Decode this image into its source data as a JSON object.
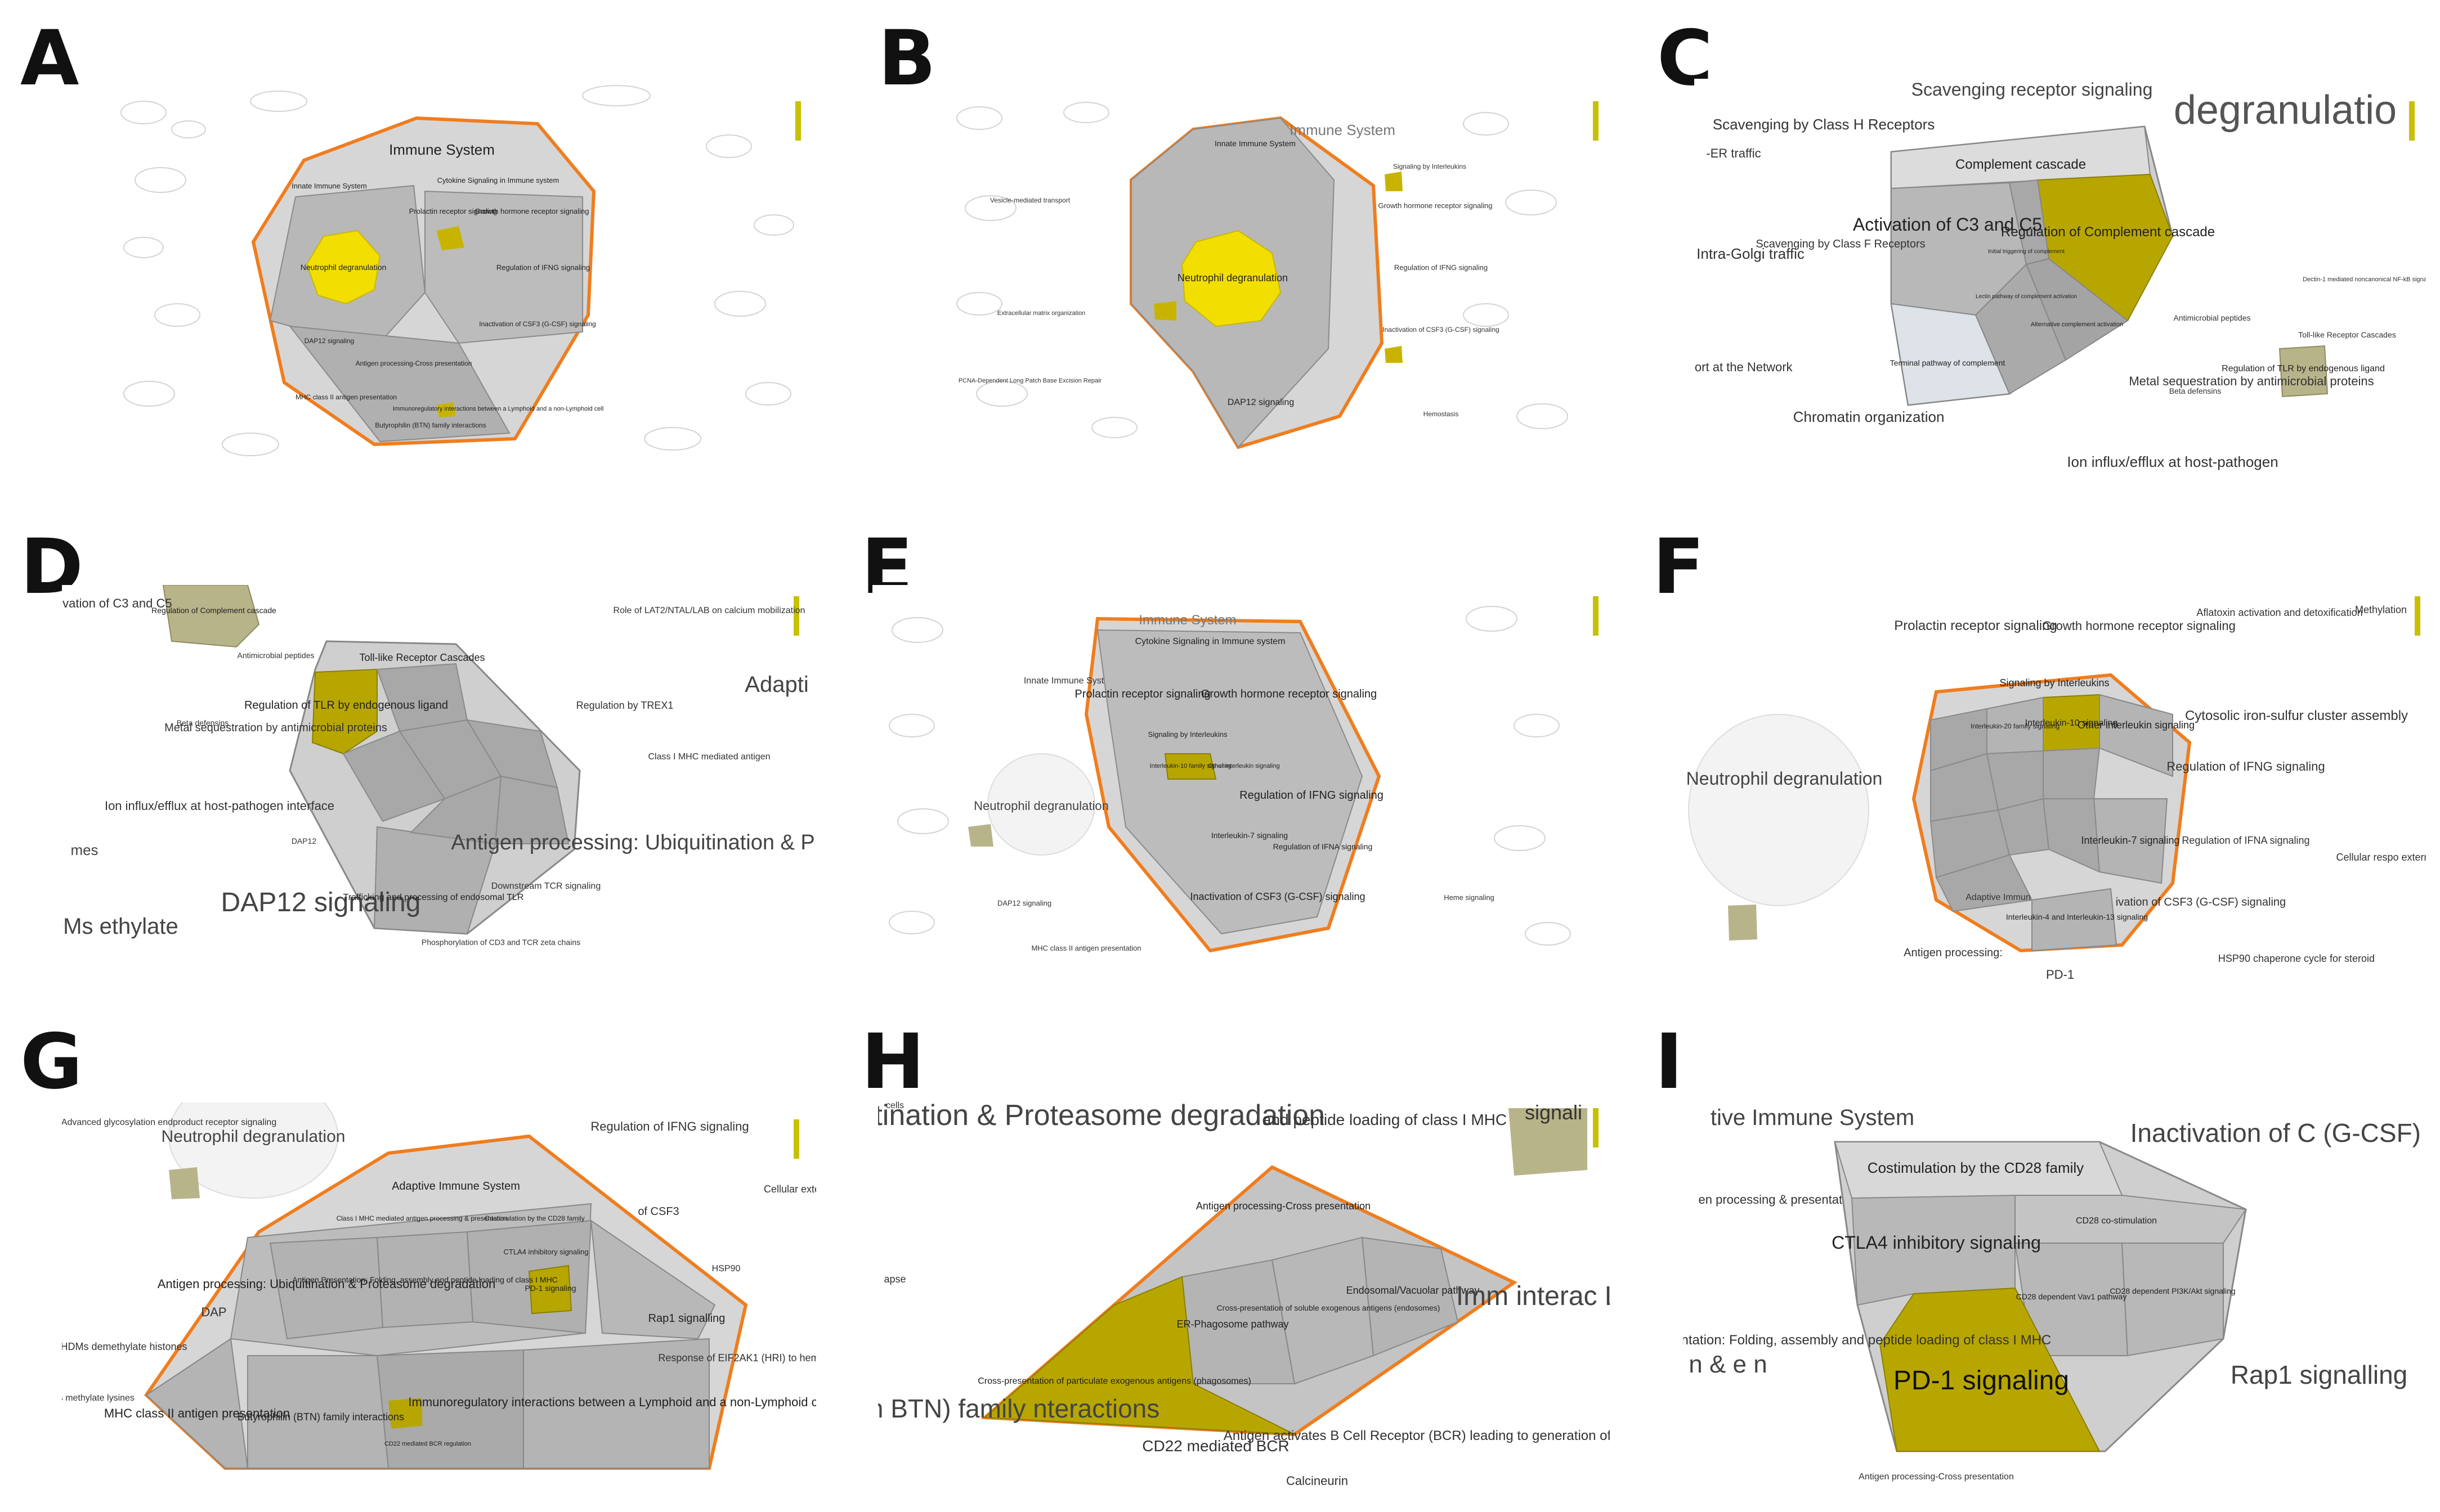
{
  "panels": [
    {
      "letter": "A",
      "labels": {
        "immune_system": "Immune System",
        "innate": "Innate Immune System",
        "cytokine": "Cytokine Signaling in Immune system",
        "prolactin": "Prolactin receptor signaling",
        "growth": "Growth hormone receptor signaling",
        "neutrophil": "Neutrophil degranulation",
        "ifng": "Regulation of IFNG signaling",
        "dap12": "DAP12 signaling",
        "antigen": "Antigen processing-Cross presentation",
        "mhc1": "MHC class II antigen presentation",
        "csf3": "Inactivation of CSF3 (G-CSF) signaling",
        "butyro": "Butyrophilin (BTN) family interactions",
        "immunoreg": "Immunoregulatory interactions between a Lymphoid and a non-Lymphoid cell"
      }
    },
    {
      "letter": "B",
      "labels": {
        "immune_system": "Immune System",
        "innate": "Innate Immune System",
        "neutrophil": "Neutrophil degranulation",
        "dap12": "DAP12 signaling",
        "vesicle": "Vesicle-mediated transport",
        "growth": "Growth hormone receptor signaling",
        "ifng": "Regulation of IFNG signaling",
        "interleukin": "Signaling by Interleukins",
        "csf3": "Inactivation of CSF3 (G-CSF) signaling",
        "ecm": "Extracellular matrix organization",
        "pcna": "PCNA-Dependent Long Patch Base Excision Repair",
        "hemostasis": "Hemostasis"
      }
    },
    {
      "letter": "C",
      "labels": {
        "top_fragment": "Scavenging receptor signaling",
        "degran": "degranulatio",
        "scav_h": "Scavenging by Class H Receptors",
        "er_traffic": "-ER traffic",
        "complement": "Complement cascade",
        "activation": "Activation of C3 and C5",
        "regulation": "Regulation of Complement cascade",
        "intra_golgi": "Intra-Golgi traffic",
        "scav_f": "Scavenging by Class F Receptors",
        "terminal": "Terminal pathway of complement",
        "initial": "Initial triggering of complement",
        "alternative": "Alternative complement activation",
        "lectin": "Lectin pathway of complement activation",
        "antimicrobial": "Antimicrobial peptides",
        "tlr_cascades": "Toll-like Receptor Cascades",
        "beta_def": "Beta defensins",
        "metal": "Metal sequestration by antimicrobial proteins",
        "tlr_endo": "Regulation of TLR by endogenous ligand",
        "transport": "nsport at the Network",
        "chromatin": "Chromatin organization",
        "ion_influx": "Ion influx/efflux at host-pathogen",
        "dectin": "Dectin-1 mediated noncanonical NF-kB signaling"
      }
    },
    {
      "letter": "D",
      "labels": {
        "activation": "Activation of C3 and C5",
        "regulation": "Regulation of Complement cascade",
        "role_lat2": "Role of LAT2/NTAL/LAB on calcium mobilization",
        "antimicrobial": "Antimicrobial peptides",
        "tlr": "Toll-like Receptor Cascades",
        "tlr_endo": "Regulation of TLR by endogenous ligand",
        "regulation_trex1": "Regulation by TREX1",
        "adapti": "Adapti",
        "class1": "Class I MHC mediated antigen",
        "beta_def": "Beta defensins",
        "metal": "Metal sequestration by antimicrobial proteins",
        "ion": "Ion influx/efflux at host-pathogen interface",
        "dap12": "DAP12 signaling",
        "dap12_small": "DAP12",
        "trafficking": "Trafficking and processing of endosomal TLR",
        "downstream": "Downstream TCR signaling",
        "antigen": "Antigen processing: Ubiquitination & Proteasome degradation",
        "mes": "mes",
        "dms": "DMs ethylate",
        "phospho": "Phosphorylation of CD3 and TCR zeta chains"
      }
    },
    {
      "letter": "E",
      "labels": {
        "immune_system": "Immune System",
        "cytokine": "Cytokine Signaling in Immune system",
        "innate": "Innate Immune Syst",
        "prolactin": "Prolactin receptor signaling",
        "growth": "Growth hormone receptor signaling",
        "interleukin": "Signaling by Interleukins",
        "il10": "Interleukin-10 family signaling",
        "other_il": "Other interleukin signaling",
        "neutrophil": "Neutrophil degranulation",
        "ifng": "Regulation of IFNG signaling",
        "il7": "Interleukin-7 signaling",
        "ifna": "Regulation of IFNA signaling",
        "csf3": "Inactivation of CSF3 (G-CSF) signaling",
        "dap12": "DAP12 signaling",
        "antigen_pres": "MHC class II antigen presentation",
        "heme": "Heme signaling"
      }
    },
    {
      "letter": "F",
      "labels": {
        "prolactin": "Prolactin receptor signaling",
        "growth": "Growth hormone receptor signaling",
        "aflatoxin": "Aflatoxin activation and detoxification",
        "methylation": "Methylation",
        "interleukins": "Signaling by Interleukins",
        "il10": "Interleukin-10 signaling",
        "other_il": "Other interleukin signaling",
        "il20": "Interleukin-20 family signaling",
        "cytosolic": "Cytosolic iron-sulfur cluster assembly",
        "neutrophil": "Neutrophil degranulation",
        "ifng": "Regulation of IFNG signaling",
        "il7": "Interleukin-7 signaling",
        "ifna": "Regulation of IFNA signaling",
        "csf3": "ivation of CSF3 (G-CSF) signaling",
        "il4": "Interleukin-4 and Interleukin-13 signaling",
        "adaptive": "Adaptive Immun",
        "cellular": "Cellular respo external st",
        "hsp90": "HSP90 chaperone cycle for steroid",
        "antigen": "Antigen processing:",
        "pd1": "PD-1"
      }
    },
    {
      "letter": "G",
      "labels": {
        "neutrophil": "Neutrophil degranulation",
        "ifng": "Regulation of IFNG signaling",
        "advanced": "Advanced glycosylation endproduct receptor signaling",
        "adaptive": "Adaptive Immune System",
        "class1": "Class I MHC mediated antigen processing & presentation",
        "costim": "Costimulation by the CD28 family",
        "csf3": "of CSF3",
        "antigen_ub": "Antigen processing: Ubiquitination & Proteasome degradation",
        "antigen_fold": "Antigen Presentation: Folding, assembly and peptide loading of class I MHC",
        "ctla4": "CTLA4 inhibitory signaling",
        "pd1": "PD-1 signaling",
        "rap1": "Rap1 signalling",
        "hsp90": "HSP90",
        "mhc2": "MHC class II antigen presentation",
        "butyro": "Butyrophilin (BTN) family interactions",
        "immunoreg": "Immunoregulatory interactions between a Lymphoid and a non-Lymphoid cell",
        "cd22": "CD22 mediated BCR regulation",
        "dap": "DAP",
        "hdms": "HDMs demethylate histones",
        "pkmts": "PKMTs methylate lysines",
        "eif2ak1": "Response of EIF2AK1 (HRI) to heme deficiency",
        "cellular": "Cellular exter"
      }
    },
    {
      "letter": "H",
      "labels": {
        "ubiq": "Ubiquitination & Proteasome degradation",
        "assembly": "and peptide loading of class I MHC",
        "signali": "signali",
        "cross": "Antigen processing-Cross presentation",
        "er_phag": "ER-Phagosome pathway",
        "cross_sol": "Cross-presentation of soluble exogenous antigens (endosomes)",
        "endo": "Endosomal/Vacuolar pathway",
        "cross_part": "Cross-presentation of particulate exogenous antigens (phagosomes)",
        "imm": "Imm interac Ly non",
        "butyro": "utyrophilin BTN) family nteractions",
        "cd22": "CD22 mediated BCR",
        "antigen_b": "Antigen activates B Cell Receptor (BCR) leading to generation of second",
        "calcineurin": "Calcineurin",
        "cells": "cells",
        "apse": "apse"
      }
    },
    {
      "letter": "I",
      "labels": {
        "adaptive": "tive Immune System",
        "costim": "Costimulation by the CD28 family",
        "antigen_pp": "en processing & presentation",
        "inactivation": "Inactivation of C (G-CSF) signaling",
        "ctla4": "CTLA4 inhibitory signaling",
        "cd28_costim": "CD28 co-stimulation",
        "cd28_vav": "CD28 dependent Vav1 pathway",
        "cd28_pi3k": "CD28 dependent PI3K/Akt signaling",
        "pd1": "PD-1 signaling",
        "antigen_pres": "Antigen Presentation: Folding, assembly and peptide loading of class I MHC",
        "rap1": "Rap1 signalling",
        "amp": "n & e n",
        "antigen_cross": "Antigen processing-Cross presentation"
      }
    }
  ]
}
